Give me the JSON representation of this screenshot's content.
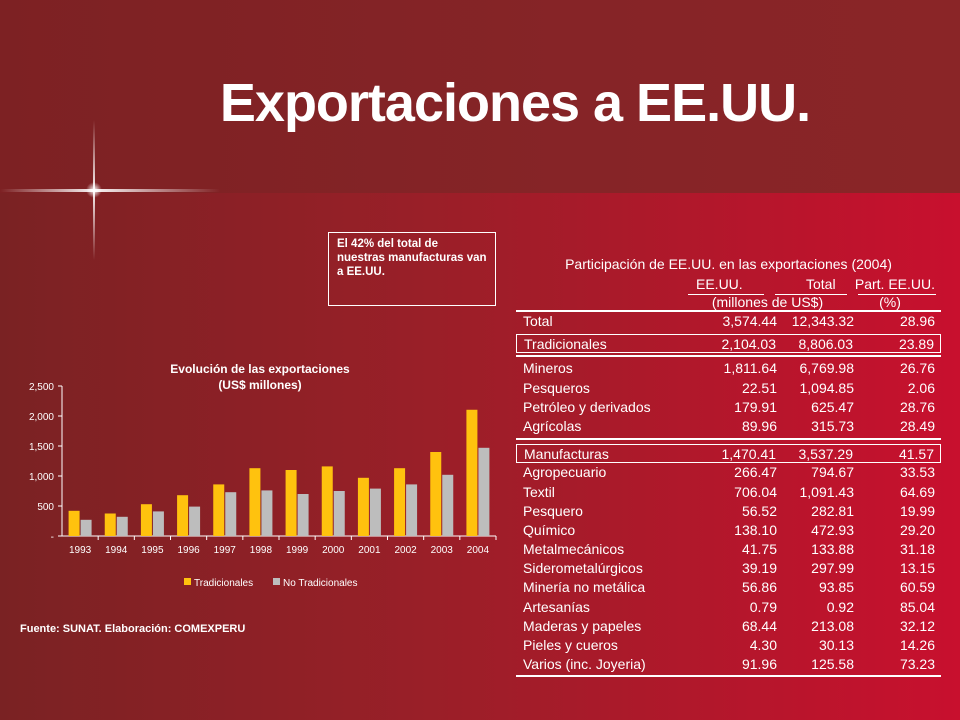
{
  "title": "Exportaciones a EE.UU.",
  "callout": "El 42% del total de nuestras manufacturas van a EE.UU.",
  "source": "Fuente: SUNAT. Elaboración: COMEXPERU",
  "colors": {
    "tradicionales": "#ffc20e",
    "no_tradicionales": "#bdbdbd"
  },
  "chart_data": {
    "type": "bar",
    "title": "Evolución de las exportaciones",
    "subtitle": "(US$ millones)",
    "categories": [
      "1993",
      "1994",
      "1995",
      "1996",
      "1997",
      "1998",
      "1999",
      "2000",
      "2001",
      "2002",
      "2003",
      "2004"
    ],
    "series": [
      {
        "name": "Tradicionales",
        "values": [
          420,
          375,
          530,
          680,
          860,
          1130,
          1100,
          1160,
          970,
          1130,
          1400,
          2104
        ]
      },
      {
        "name": "No Tradicionales",
        "values": [
          270,
          320,
          410,
          490,
          730,
          760,
          700,
          750,
          790,
          860,
          1020,
          1470
        ]
      }
    ],
    "ylim": [
      0,
      2500
    ],
    "yticks": [
      "-",
      "500",
      "1,000",
      "1,500",
      "2,000",
      "2,500"
    ],
    "legend": "bottom"
  },
  "table": {
    "title": "Participación de EE.UU. en las exportaciones (2004)",
    "headers": [
      "EE.UU.",
      "Total",
      "Part. EE.UU."
    ],
    "subheaders": [
      "(millones de US$)",
      "(%)"
    ],
    "rows": [
      {
        "label": "Total",
        "a": "3,574.44",
        "b": "12,343.32",
        "c": "28.96"
      },
      {
        "label": "Tradicionales",
        "a": "2,104.03",
        "b": "8,806.03",
        "c": "23.89"
      },
      {
        "label": "Mineros",
        "a": "1,811.64",
        "b": "6,769.98",
        "c": "26.76"
      },
      {
        "label": "Pesqueros",
        "a": "22.51",
        "b": "1,094.85",
        "c": "2.06"
      },
      {
        "label": "Petróleo y derivados",
        "a": "179.91",
        "b": "625.47",
        "c": "28.76"
      },
      {
        "label": "Agrícolas",
        "a": "89.96",
        "b": "315.73",
        "c": "28.49"
      },
      {
        "label": "Manufacturas",
        "a": "1,470.41",
        "b": "3,537.29",
        "c": "41.57"
      },
      {
        "label": "Agropecuario",
        "a": "266.47",
        "b": "794.67",
        "c": "33.53"
      },
      {
        "label": "Textil",
        "a": "706.04",
        "b": "1,091.43",
        "c": "64.69"
      },
      {
        "label": "Pesquero",
        "a": "56.52",
        "b": "282.81",
        "c": "19.99"
      },
      {
        "label": "Químico",
        "a": "138.10",
        "b": "472.93",
        "c": "29.20"
      },
      {
        "label": "Metalmecánicos",
        "a": "41.75",
        "b": "133.88",
        "c": "31.18"
      },
      {
        "label": "Siderometalúrgicos",
        "a": "39.19",
        "b": "297.99",
        "c": "13.15"
      },
      {
        "label": "Minería no metálica",
        "a": "56.86",
        "b": "93.85",
        "c": "60.59"
      },
      {
        "label": "Artesanías",
        "a": "0.79",
        "b": "0.92",
        "c": "85.04"
      },
      {
        "label": "Maderas y papeles",
        "a": "68.44",
        "b": "213.08",
        "c": "32.12"
      },
      {
        "label": "Pieles y cueros",
        "a": "4.30",
        "b": "30.13",
        "c": "14.26"
      },
      {
        "label": "Varios (inc. Joyeria)",
        "a": "91.96",
        "b": "125.58",
        "c": "73.23"
      }
    ]
  }
}
